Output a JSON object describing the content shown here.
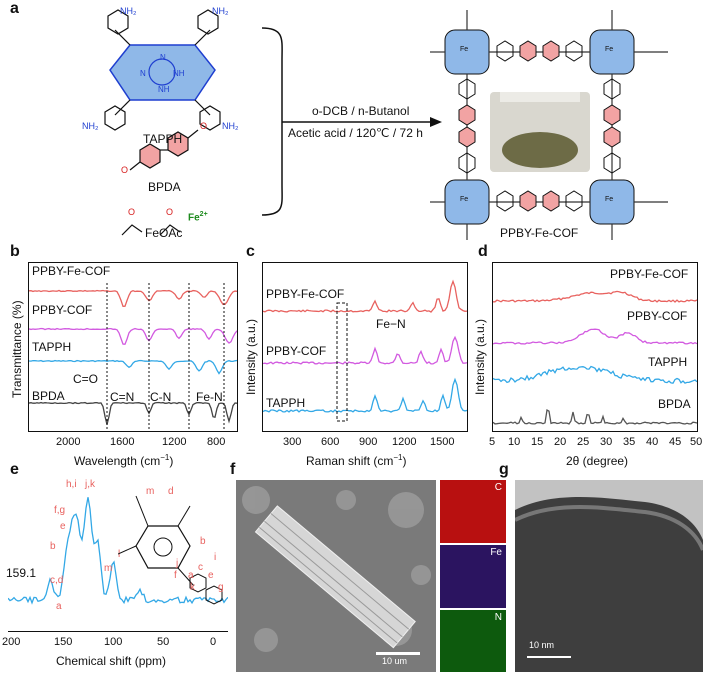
{
  "panels": {
    "a": "a",
    "b": "b",
    "c": "c",
    "d": "d",
    "e": "e",
    "f": "f",
    "g": "g"
  },
  "panel_a": {
    "monomer1_label": "TAPPH",
    "monomer2_label": "BPDA",
    "monomer3_label": "FeOAc",
    "fe_ion": "Fe",
    "fe_charge": "2+",
    "nh2": "NH₂",
    "amine_n": "N",
    "amine_nh": "NH",
    "aldehyde_o": "O",
    "acetate_o": "O",
    "acetate_minus": "-",
    "condition1": "o-DCB / n-Butanol",
    "condition2": "Acetic acid / 120℃ / 72 h",
    "product_label": "PPBY-Fe-COF",
    "product_metal": "Fe",
    "linker_n": "N",
    "colors": {
      "amine": "#1f3fd0",
      "aldehyde": "#d61c1c",
      "porphyrin": "#8fb8e8",
      "bipyridine": "#f2a3a3",
      "fe": "#1d8a1d"
    }
  },
  "chart_data": [
    {
      "id": "b",
      "type": "line",
      "xlabel": "Wavelength (cm",
      "xlabel_sup": "−1",
      "xlabel_tail": ")",
      "ylabel": "Transmittance (%)",
      "xticks": [
        "2000",
        "1600",
        "1200",
        "800"
      ],
      "series": [
        {
          "name": "PPBY-Fe-COF",
          "color": "#e8625f"
        },
        {
          "name": "PPBY-COF",
          "color": "#d25ae0"
        },
        {
          "name": "TAPPH",
          "color": "#33a8e6"
        },
        {
          "name": "BPDA",
          "color": "#444444"
        }
      ],
      "annotations": [
        "C=O",
        "C=N",
        "C-N",
        "Fe-N"
      ]
    },
    {
      "id": "c",
      "type": "line",
      "xlabel": "Raman shift (cm",
      "xlabel_sup": "−1",
      "xlabel_tail": ")",
      "ylabel": "Intensity (a.u.)",
      "xticks": [
        "300",
        "600",
        "900",
        "1200",
        "1500"
      ],
      "series": [
        {
          "name": "PPBY-Fe-COF",
          "color": "#e8625f"
        },
        {
          "name": "PPBY-COF",
          "color": "#d25ae0"
        },
        {
          "name": "TAPPH",
          "color": "#33a8e6"
        }
      ],
      "annotations": [
        "Fe−N"
      ]
    },
    {
      "id": "d",
      "type": "line",
      "xlabel": "2θ (degree)",
      "ylabel": "Intensity (a.u.)",
      "xticks": [
        "5",
        "10",
        "15",
        "20",
        "25",
        "30",
        "35",
        "40",
        "45",
        "50"
      ],
      "series": [
        {
          "name": "PPBY-Fe-COF",
          "color": "#e8625f"
        },
        {
          "name": "PPBY-COF",
          "color": "#d25ae0"
        },
        {
          "name": "TAPPH",
          "color": "#33a8e6"
        },
        {
          "name": "BPDA",
          "color": "#555555"
        }
      ]
    },
    {
      "id": "e",
      "type": "line",
      "xlabel": "Chemical shift (ppm)",
      "xticks": [
        "200",
        "150",
        "100",
        "50",
        "0"
      ],
      "series": [
        {
          "color": "#33a8e6"
        }
      ],
      "annotations": [
        "159.1",
        "h,i",
        "j,k",
        "f,g",
        "e",
        "b",
        "c,d",
        "a",
        "l",
        "m",
        "m",
        "d",
        "b",
        "i",
        "j",
        "f",
        "a",
        "c",
        "e",
        "k",
        "g"
      ]
    }
  ],
  "panel_f": {
    "scale_bar": "10 um",
    "maps": [
      "C",
      "Fe",
      "N"
    ],
    "map_colors": [
      "#e01818",
      "#5a2acb",
      "#19b019"
    ]
  },
  "panel_g": {
    "scale_bar": "10 nm"
  }
}
